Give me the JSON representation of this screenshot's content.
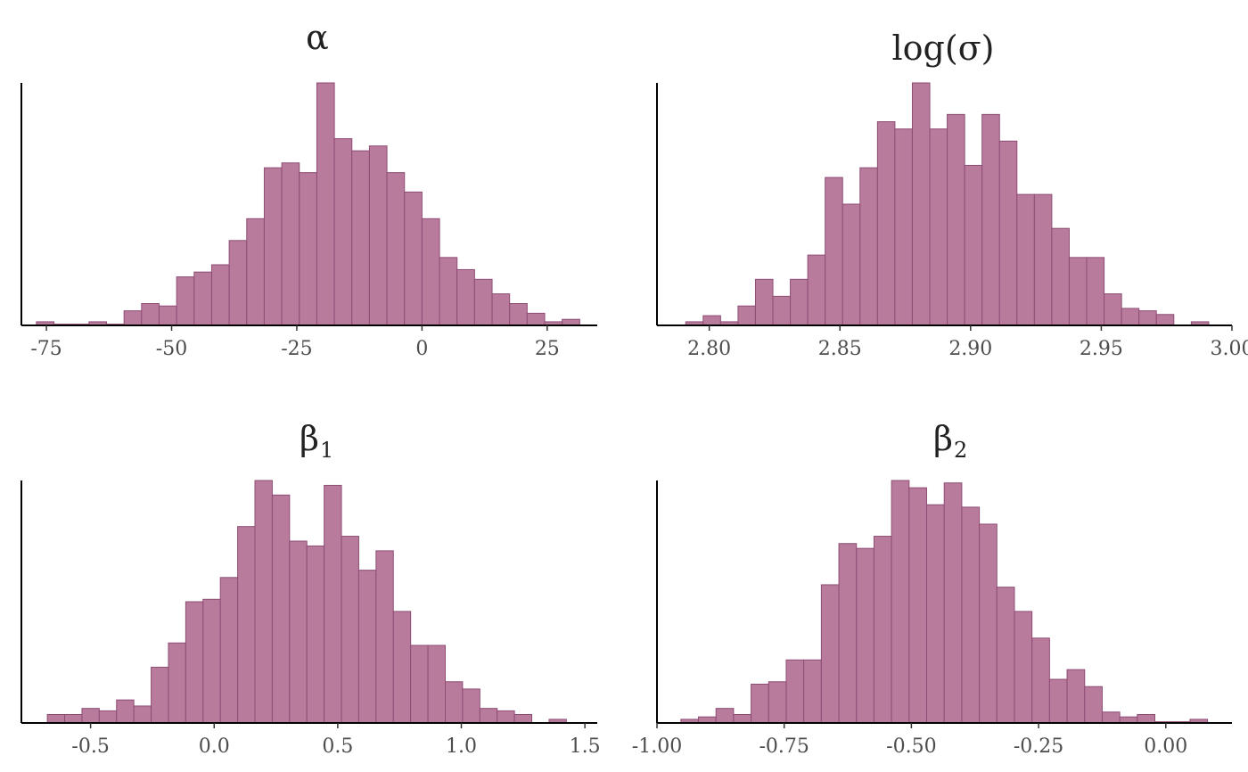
{
  "colors": {
    "bar_fill": "#b87b9b",
    "bar_stroke": "#8f4d76",
    "axis": "#000000",
    "tick_text": "#4d4d4d",
    "title_text": "#222222"
  },
  "chart_data": [
    {
      "type": "bar",
      "title": "α",
      "title_subscript": "",
      "xlabel": "",
      "ylabel": "",
      "xlim": [
        -80,
        35
      ],
      "bin_start": -77,
      "bin_width": 3.5,
      "values": [
        1.5,
        0.5,
        0.5,
        1.5,
        0.5,
        6,
        9,
        8,
        20,
        22,
        25,
        35,
        44,
        65,
        67,
        63,
        100,
        77,
        72,
        74,
        63,
        55,
        44,
        28,
        23,
        19,
        13,
        9,
        5,
        1.5,
        2.5
      ],
      "ticks": [
        -75,
        -50,
        -25,
        0,
        25
      ],
      "tick_labels": [
        "-75",
        "-50",
        "-25",
        "0",
        "25"
      ]
    },
    {
      "type": "bar",
      "title": "log(σ)",
      "title_subscript": "",
      "xlabel": "",
      "ylabel": "",
      "xlim": [
        2.78,
        3.0
      ],
      "bin_start": 2.791,
      "bin_width": 0.00667,
      "values": [
        1.5,
        4,
        1.5,
        8,
        19,
        12,
        19,
        29,
        61,
        50,
        65,
        84,
        81,
        100,
        81,
        87,
        66,
        87,
        76,
        54,
        54,
        40,
        28,
        28,
        13,
        7,
        6,
        4.5,
        0,
        1.5
      ],
      "ticks": [
        2.8,
        2.85,
        2.9,
        2.95,
        3.0
      ],
      "tick_labels": [
        "2.80",
        "2.85",
        "2.90",
        "2.95",
        "3.00"
      ]
    },
    {
      "type": "bar",
      "title": "β",
      "title_subscript": "1",
      "xlabel": "",
      "ylabel": "",
      "xlim": [
        -0.78,
        1.55
      ],
      "bin_start": -0.675,
      "bin_width": 0.07,
      "values": [
        3.5,
        3.5,
        6,
        5,
        9.5,
        7,
        23,
        33,
        50,
        51,
        60,
        81,
        100,
        94,
        75,
        73,
        98,
        77,
        63,
        71,
        46,
        32,
        32,
        17,
        14,
        6,
        5,
        3.5,
        0,
        1.5
      ],
      "ticks": [
        -0.5,
        0.0,
        0.5,
        1.0,
        1.5
      ],
      "tick_labels": [
        "-0.5",
        "0.0",
        "0.5",
        "1.0",
        "1.5"
      ]
    },
    {
      "type": "bar",
      "title": "β",
      "title_subscript": "2",
      "xlabel": "",
      "ylabel": "",
      "xlim": [
        -1.0,
        0.13
      ],
      "bin_start": -0.953,
      "bin_width": 0.0345,
      "values": [
        1.5,
        2.5,
        6,
        3.5,
        16,
        17,
        26,
        26,
        57,
        74,
        72,
        77,
        100,
        97,
        90,
        99,
        89,
        82,
        56,
        46,
        35,
        18,
        22,
        15,
        4.5,
        2.5,
        3.5,
        0.5,
        0.5,
        1.5
      ],
      "ticks": [
        -1.0,
        -0.75,
        -0.5,
        -0.25,
        0.0
      ],
      "tick_labels": [
        "-1.00",
        "-0.75",
        "-0.50",
        "-0.25",
        "0.00"
      ]
    }
  ]
}
